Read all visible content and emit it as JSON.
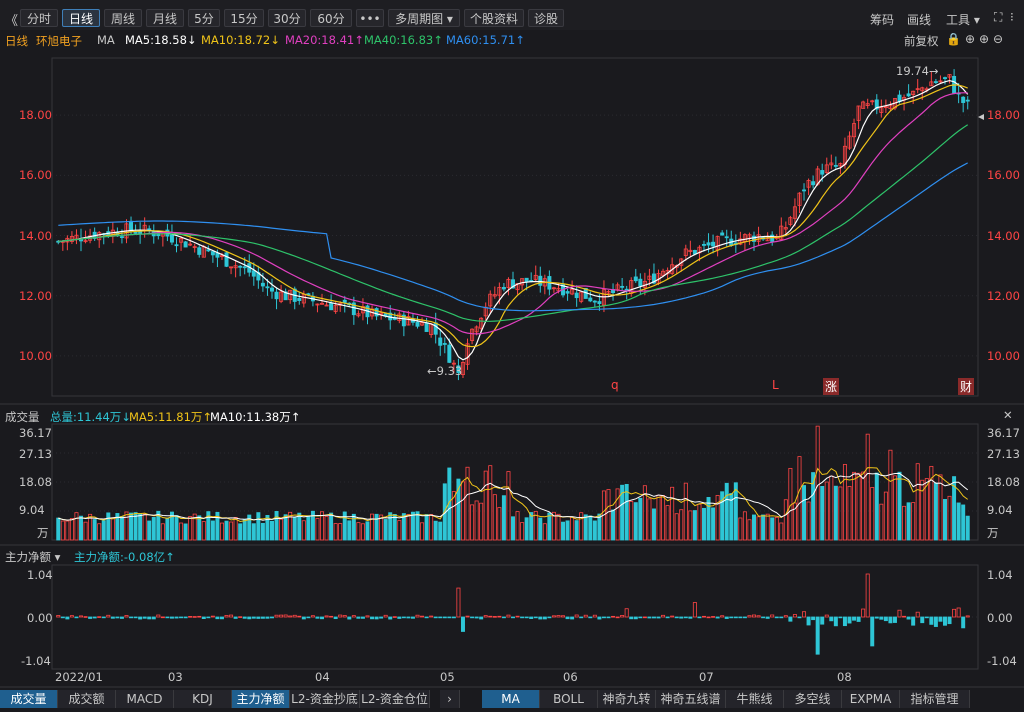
{
  "toolbar": {
    "back": "《",
    "buttons": [
      "分时",
      "日线",
      "周线",
      "月线",
      "5分",
      "15分",
      "30分",
      "60分",
      "•••",
      "多周期图 ▾",
      "个股资料",
      "诊股"
    ],
    "active": "日线",
    "right": [
      "筹码",
      "画线",
      "工具 ▾"
    ]
  },
  "legend": {
    "period": "日线",
    "stock": "环旭电子",
    "ma_label": "MA",
    "items": [
      {
        "text": "MA5:18.58↓",
        "color": "#ffffff"
      },
      {
        "text": "MA10:18.72↓",
        "color": "#f0c419"
      },
      {
        "text": "MA20:18.41↑",
        "color": "#e040c0"
      },
      {
        "text": "MA40:16.83↑",
        "color": "#2ec36a"
      },
      {
        "text": "MA60:15.71↑",
        "color": "#2f8ff0"
      }
    ],
    "right_text": "前复权"
  },
  "vol_legend": {
    "title": "成交量",
    "items": [
      {
        "text": "总量:11.44万↓",
        "color": "#2ec6d6"
      },
      {
        "text": "MA5:11.81万↑",
        "color": "#f0c419"
      },
      {
        "text": "MA10:11.38万↑",
        "color": "#ffffff"
      }
    ]
  },
  "flow_legend": {
    "title": "主力净额 ▾",
    "value": "主力净额:-0.08亿↑",
    "color": "#2ec6d6"
  },
  "price_axis": [
    "18.00",
    "16.00",
    "14.00",
    "12.00",
    "10.00"
  ],
  "vol_axis": [
    "36.17",
    "27.13",
    "18.08",
    "9.04",
    "万"
  ],
  "flow_axis": [
    "1.04",
    "0.00",
    "-1.04"
  ],
  "x_axis": [
    "2022/01",
    "03",
    "04",
    "05",
    "06",
    "07",
    "08"
  ],
  "annotations": {
    "high": "19.74→",
    "low": "←9.33"
  },
  "events": [
    "q",
    "L",
    "涨",
    "财"
  ],
  "bottom_tabs_left": [
    "成交量",
    "成交额",
    "MACD",
    "KDJ",
    "主力净额",
    "L2-资金抄底",
    "L2-资金仓位"
  ],
  "bottom_tabs_right": [
    "MA",
    "BOLL",
    "神奇九转",
    "神奇五线谱",
    "牛熊线",
    "多空线",
    "EXPMA",
    "指标管理"
  ],
  "colors": {
    "up": "#ff4545",
    "down": "#2ec6d6",
    "bg": "#1a1a1e"
  },
  "chart_data": {
    "type": "candlestick",
    "series": [
      {
        "name": "MA5",
        "color": "#ffffff"
      },
      {
        "name": "MA10",
        "color": "#f0c419"
      },
      {
        "name": "MA20",
        "color": "#e040c0"
      },
      {
        "name": "MA40",
        "color": "#2ec36a"
      },
      {
        "name": "MA60",
        "color": "#2f8ff0"
      }
    ],
    "price_range": [
      8.7,
      19.9
    ],
    "close_points": [
      [
        0,
        13.8
      ],
      [
        6,
        14.0
      ],
      [
        10,
        14.1
      ],
      [
        16,
        14.2
      ],
      [
        22,
        14.1
      ],
      [
        26,
        13.9
      ],
      [
        32,
        13.5
      ],
      [
        38,
        13.1
      ],
      [
        42,
        12.8
      ],
      [
        46,
        12.2
      ],
      [
        50,
        12.0
      ],
      [
        54,
        11.9
      ],
      [
        60,
        11.7
      ],
      [
        66,
        11.5
      ],
      [
        70,
        11.3
      ],
      [
        76,
        11.2
      ],
      [
        82,
        11.0
      ],
      [
        86,
        10.0
      ],
      [
        88,
        9.4
      ],
      [
        90,
        10.6
      ],
      [
        94,
        11.7
      ],
      [
        98,
        12.4
      ],
      [
        104,
        12.5
      ],
      [
        110,
        12.3
      ],
      [
        114,
        12.1
      ],
      [
        118,
        11.9
      ],
      [
        124,
        12.2
      ],
      [
        130,
        12.5
      ],
      [
        134,
        13.0
      ],
      [
        138,
        13.4
      ],
      [
        142,
        13.6
      ],
      [
        146,
        13.8
      ],
      [
        150,
        13.9
      ],
      [
        154,
        14.0
      ],
      [
        158,
        13.9
      ],
      [
        160,
        14.3
      ],
      [
        164,
        15.6
      ],
      [
        168,
        16.2
      ],
      [
        172,
        16.3
      ],
      [
        176,
        18.2
      ],
      [
        180,
        18.3
      ],
      [
        184,
        18.5
      ],
      [
        188,
        18.7
      ],
      [
        192,
        19.1
      ],
      [
        196,
        19.2
      ],
      [
        198,
        18.6
      ],
      [
        200,
        18.3
      ]
    ],
    "high": 19.74,
    "low": 9.33,
    "ma_last": {
      "MA5": 18.58,
      "MA10": 18.72,
      "MA20": 18.41,
      "MA40": 16.83,
      "MA60": 15.71
    },
    "volume_unit": "万",
    "volume_range": [
      0,
      36.17
    ],
    "volume_total": 11.44,
    "volume_ma5": 11.81,
    "volume_ma10": 11.38,
    "flow_unit": "亿",
    "flow_range": [
      -1.04,
      1.04
    ],
    "flow_last": -0.08
  }
}
